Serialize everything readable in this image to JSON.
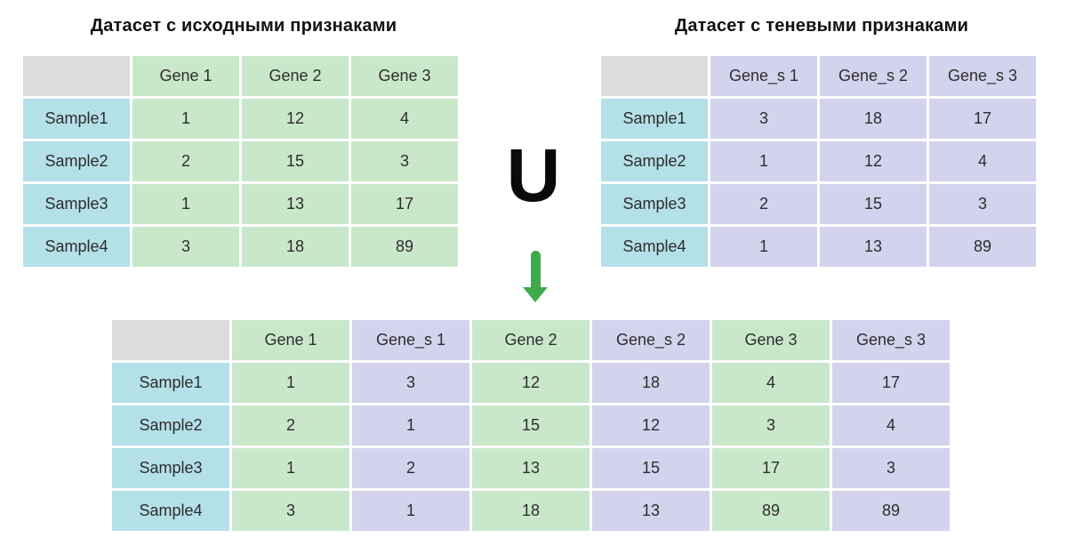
{
  "left_table": {
    "title": "Датасет с исходными признаками",
    "columns": [
      "",
      "Gene 1",
      "Gene 2",
      "Gene 3"
    ],
    "col_colors": [
      "label",
      "green",
      "green",
      "green"
    ],
    "rows": [
      {
        "label": "Sample1",
        "values": [
          1,
          12,
          4
        ]
      },
      {
        "label": "Sample2",
        "values": [
          2,
          15,
          3
        ]
      },
      {
        "label": "Sample3",
        "values": [
          1,
          13,
          17
        ]
      },
      {
        "label": "Sample4",
        "values": [
          3,
          18,
          89
        ]
      }
    ]
  },
  "right_table": {
    "title": "Датасет с теневыми признаками",
    "columns": [
      "",
      "Gene_s 1",
      "Gene_s 2",
      "Gene_s 3"
    ],
    "col_colors": [
      "label",
      "lavender",
      "lavender",
      "lavender"
    ],
    "rows": [
      {
        "label": "Sample1",
        "values": [
          3,
          18,
          17
        ]
      },
      {
        "label": "Sample2",
        "values": [
          1,
          12,
          4
        ]
      },
      {
        "label": "Sample3",
        "values": [
          2,
          15,
          3
        ]
      },
      {
        "label": "Sample4",
        "values": [
          1,
          13,
          89
        ]
      }
    ]
  },
  "merged_table": {
    "columns": [
      "",
      "Gene 1",
      "Gene_s 1",
      "Gene 2",
      "Gene_s 2",
      "Gene 3",
      "Gene_s 3"
    ],
    "col_colors": [
      "label",
      "green",
      "lavender",
      "green",
      "lavender",
      "green",
      "lavender"
    ],
    "rows": [
      {
        "label": "Sample1",
        "values": [
          1,
          3,
          12,
          18,
          4,
          17
        ]
      },
      {
        "label": "Sample2",
        "values": [
          2,
          1,
          15,
          12,
          3,
          4
        ]
      },
      {
        "label": "Sample3",
        "values": [
          1,
          2,
          13,
          15,
          17,
          3
        ]
      },
      {
        "label": "Sample4",
        "values": [
          3,
          1,
          18,
          13,
          89,
          89
        ]
      }
    ]
  },
  "operators": {
    "union_symbol": "U"
  },
  "colors": {
    "green": "#c9e8ca",
    "lavender": "#d3d3ee",
    "blue": "#b4e0e8",
    "gray": "#dcdcdc",
    "arrow": "#3faa4b",
    "text": "#2d2d2d"
  }
}
